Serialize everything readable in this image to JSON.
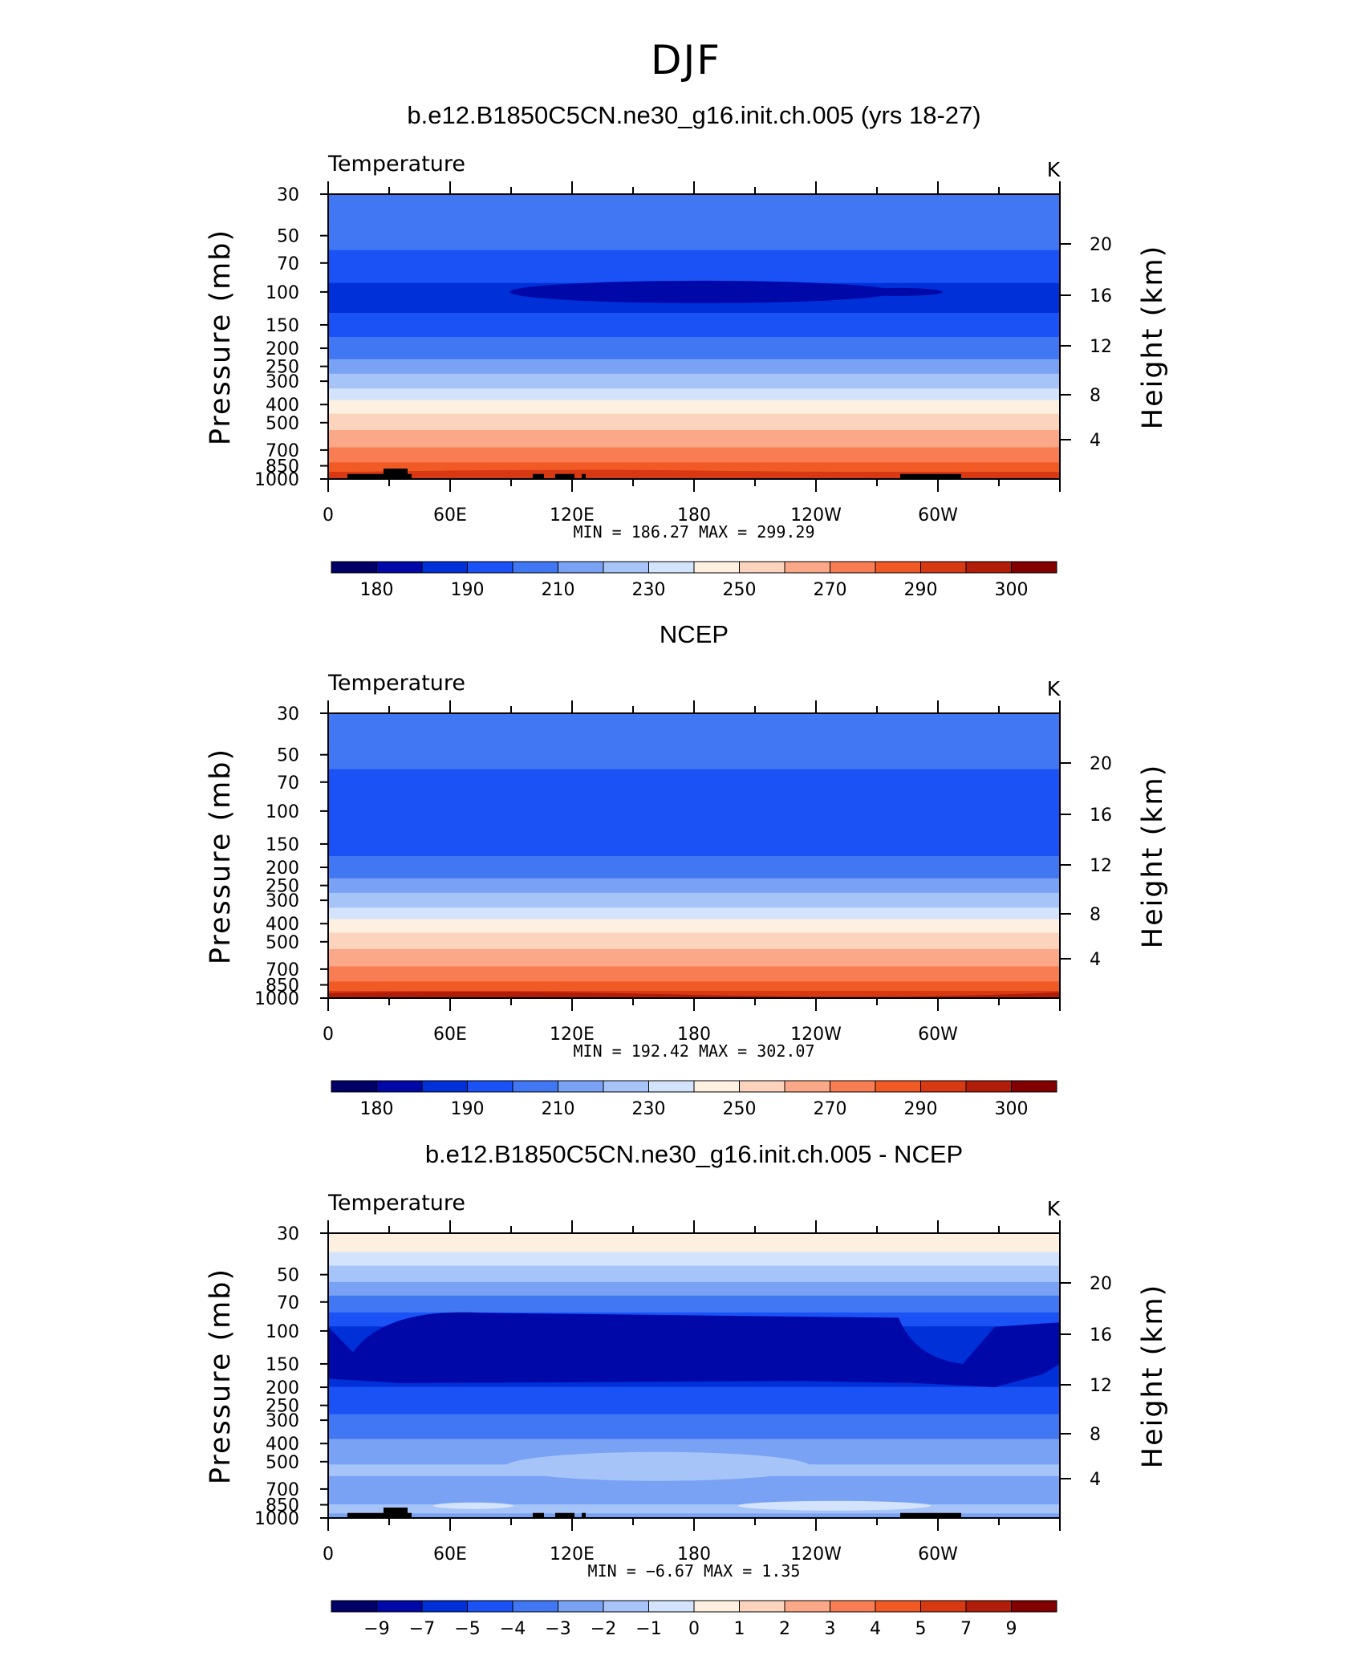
{
  "figure": {
    "title": "DJF",
    "colors": [
      "#000066",
      "#0008a8",
      "#0030d8",
      "#1a52f6",
      "#4177f2",
      "#7aa2f4",
      "#a7c4f8",
      "#d3e3fb",
      "#fdf0e0",
      "#fcd4be",
      "#fba888",
      "#f97d52",
      "#f15a24",
      "#d73913",
      "#b21d09",
      "#820000"
    ]
  },
  "chart_data": [
    {
      "type": "heatmap",
      "panel": "model",
      "title": "b.e12.B1850C5CN.ne30_g16.init.ch.005 (yrs 18-27)",
      "subtitle_left": "Temperature",
      "subtitle_right": "K",
      "ylabel": "Pressure  (mb)",
      "ylabel_right": "Height  (km)",
      "xticks": [
        "0",
        "60E",
        "120E",
        "180",
        "120W",
        "60W"
      ],
      "yticks": [
        "30",
        "50",
        "70",
        "100",
        "150",
        "200",
        "250",
        "300",
        "400",
        "500",
        "700",
        "850",
        "1000"
      ],
      "yticks_right": [
        "20",
        "16",
        "12",
        "8",
        "4"
      ],
      "stats": "MIN =  186.27   MAX =  299.29",
      "colorbar_labels": [
        "180",
        "190",
        "210",
        "230",
        "250",
        "270",
        "290",
        "300"
      ],
      "level_index_by_pressure": [
        [
          30,
          4
        ],
        [
          45,
          4
        ],
        [
          60,
          3
        ],
        [
          90,
          2
        ],
        [
          130,
          3
        ],
        [
          175,
          4
        ],
        [
          230,
          5
        ],
        [
          275,
          6
        ],
        [
          330,
          7
        ],
        [
          380,
          8
        ],
        [
          450,
          9
        ],
        [
          550,
          10
        ],
        [
          680,
          11
        ],
        [
          820,
          12
        ],
        [
          920,
          13
        ],
        [
          1000,
          13
        ]
      ]
    },
    {
      "type": "heatmap",
      "panel": "obs",
      "title": "NCEP",
      "subtitle_left": "Temperature",
      "subtitle_right": "K",
      "ylabel": "Pressure  (mb)",
      "ylabel_right": "Height  (km)",
      "xticks": [
        "0",
        "60E",
        "120E",
        "180",
        "120W",
        "60W"
      ],
      "yticks": [
        "30",
        "50",
        "70",
        "100",
        "150",
        "200",
        "250",
        "300",
        "400",
        "500",
        "700",
        "850",
        "1000"
      ],
      "yticks_right": [
        "20",
        "16",
        "12",
        "8",
        "4"
      ],
      "stats": "MIN =  192.42   MAX =  302.07",
      "colorbar_labels": [
        "180",
        "190",
        "210",
        "230",
        "250",
        "270",
        "290",
        "300"
      ],
      "level_index_by_pressure": [
        [
          30,
          4
        ],
        [
          45,
          4
        ],
        [
          60,
          3
        ],
        [
          130,
          3
        ],
        [
          175,
          4
        ],
        [
          230,
          5
        ],
        [
          275,
          6
        ],
        [
          330,
          7
        ],
        [
          380,
          8
        ],
        [
          450,
          9
        ],
        [
          550,
          10
        ],
        [
          680,
          11
        ],
        [
          820,
          12
        ],
        [
          920,
          13
        ],
        [
          1000,
          14
        ]
      ]
    },
    {
      "type": "heatmap",
      "panel": "difference",
      "title": "b.e12.B1850C5CN.ne30_g16.init.ch.005 - NCEP",
      "subtitle_left": "Temperature",
      "subtitle_right": "K",
      "ylabel": "Pressure  (mb)",
      "ylabel_right": "Height  (km)",
      "xticks": [
        "0",
        "60E",
        "120E",
        "180",
        "120W",
        "60W"
      ],
      "yticks": [
        "30",
        "50",
        "70",
        "100",
        "150",
        "200",
        "250",
        "300",
        "400",
        "500",
        "700",
        "850",
        "1000"
      ],
      "yticks_right": [
        "20",
        "16",
        "12",
        "8",
        "4"
      ],
      "stats": "MIN =    −6.67   MAX =     1.35",
      "colorbar_labels": [
        "−9",
        "−7",
        "−5",
        "−4",
        "−3",
        "−2",
        "−1",
        "0",
        "1",
        "2",
        "3",
        "4",
        "5",
        "7",
        "9"
      ],
      "level_index_by_pressure": [
        [
          30,
          8
        ],
        [
          38,
          7
        ],
        [
          45,
          6
        ],
        [
          55,
          5
        ],
        [
          65,
          4
        ],
        [
          80,
          3
        ],
        [
          95,
          2
        ],
        [
          180,
          2
        ],
        [
          200,
          3
        ],
        [
          280,
          4
        ],
        [
          380,
          5
        ],
        [
          520,
          6
        ],
        [
          600,
          5
        ],
        [
          750,
          5
        ],
        [
          850,
          6
        ],
        [
          950,
          5
        ],
        [
          1000,
          5
        ]
      ]
    }
  ]
}
